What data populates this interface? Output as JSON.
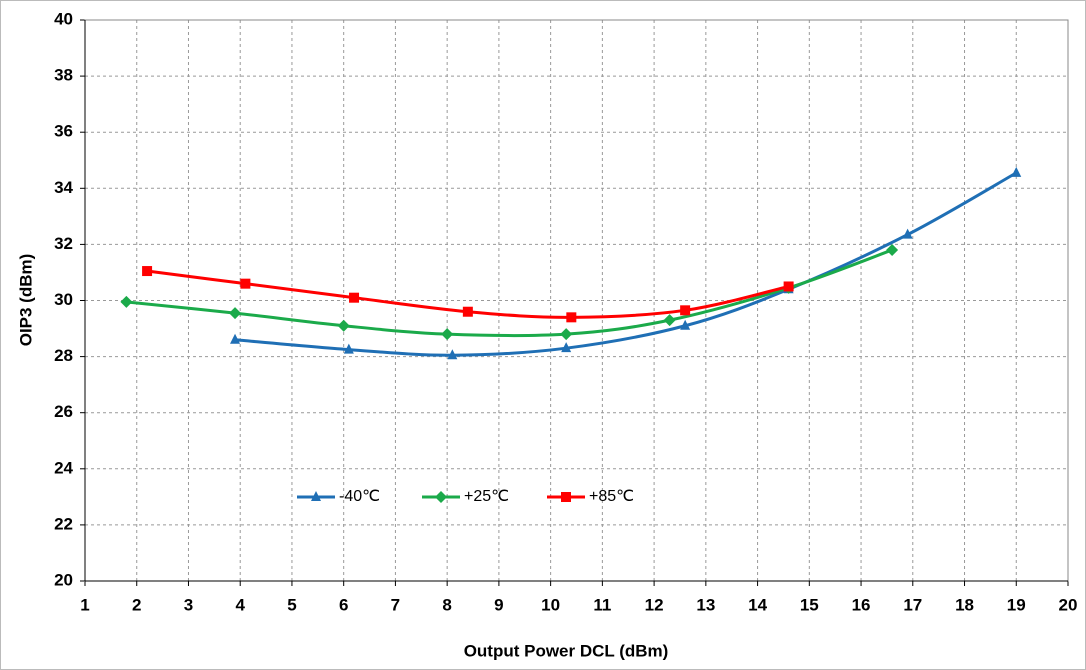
{
  "chart_data": {
    "type": "line",
    "x_label": "Output Power DCL (dBm)",
    "y_label": "OIP3 (dBm)",
    "xlim": [
      1,
      20
    ],
    "ylim": [
      20,
      40
    ],
    "xticks": [
      1,
      2,
      3,
      4,
      5,
      6,
      7,
      8,
      9,
      10,
      11,
      12,
      13,
      14,
      15,
      16,
      17,
      18,
      19,
      20
    ],
    "yticks": [
      20,
      22,
      24,
      26,
      28,
      30,
      32,
      34,
      36,
      38,
      40
    ],
    "grid": true,
    "legend": "lower left",
    "series": [
      {
        "name": "-40℃",
        "color": "#1f6fb5",
        "marker": "triangle",
        "x": [
          3.9,
          6.1,
          8.1,
          10.3,
          12.6,
          14.6,
          16.9,
          19.0
        ],
        "values": [
          28.6,
          28.25,
          28.05,
          28.3,
          29.1,
          30.4,
          32.35,
          34.55
        ]
      },
      {
        "name": "+25℃",
        "color": "#1baa4a",
        "marker": "diamond",
        "x": [
          1.8,
          3.9,
          6.0,
          8.0,
          10.3,
          12.3,
          14.6,
          16.6
        ],
        "values": [
          29.95,
          29.55,
          29.1,
          28.8,
          28.8,
          29.3,
          30.45,
          31.8
        ]
      },
      {
        "name": "+85℃",
        "color": "#ff0000",
        "marker": "square",
        "x": [
          2.2,
          4.1,
          6.2,
          8.4,
          10.4,
          12.6,
          14.6
        ],
        "values": [
          31.05,
          30.6,
          30.1,
          29.6,
          29.4,
          29.65,
          30.5
        ]
      }
    ]
  }
}
